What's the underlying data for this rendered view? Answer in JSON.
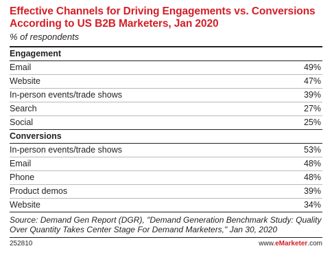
{
  "chart_data": {
    "type": "table",
    "title": "Effective Channels for Driving Engagements vs. Conversions According to US B2B Marketers, Jan 2020",
    "subtitle": "% of respondents",
    "sections": [
      {
        "name": "Engagement",
        "rows": [
          {
            "label": "Email",
            "value": "49%"
          },
          {
            "label": "Website",
            "value": "47%"
          },
          {
            "label": "In-person events/trade shows",
            "value": "39%"
          },
          {
            "label": "Search",
            "value": "27%"
          },
          {
            "label": "Social",
            "value": "25%"
          }
        ]
      },
      {
        "name": "Conversions",
        "rows": [
          {
            "label": "In-person events/trade shows",
            "value": "53%"
          },
          {
            "label": "Email",
            "value": "48%"
          },
          {
            "label": "Phone",
            "value": "48%"
          },
          {
            "label": "Product demos",
            "value": "39%"
          },
          {
            "label": "Website",
            "value": "34%"
          }
        ]
      }
    ],
    "source": "Source: Demand Gen Report (DGR), \"Demand Generation Benchmark Study: Quality Over Quantity Takes Center Stage For Demand Marketers,\" Jan 30, 2020",
    "chart_id": "252810",
    "brand_prefix": "www.",
    "brand_bold": "eMarketer",
    "brand_suffix": ".com",
    "colors": {
      "title": "#d31e26",
      "text": "#231f20",
      "row_rule": "#b9b9b9"
    }
  }
}
